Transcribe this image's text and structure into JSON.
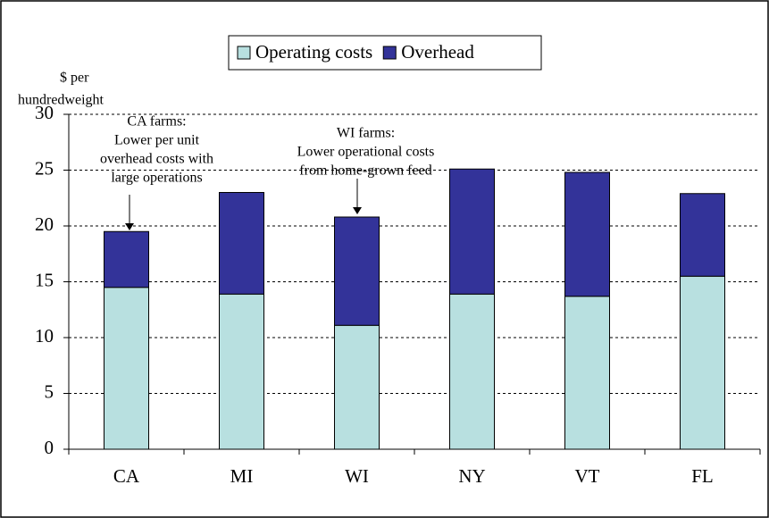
{
  "chart_data": {
    "type": "stacked_bar",
    "y_label": [
      "$ per",
      "hundredweight"
    ],
    "categories": [
      "CA",
      "MI",
      "WI",
      "NY",
      "VT",
      "FL"
    ],
    "series": [
      {
        "name": "Operating costs",
        "color": "#b8e0e0",
        "values": [
          14.5,
          13.9,
          11.1,
          13.9,
          13.7,
          15.5
        ]
      },
      {
        "name": "Overhead",
        "color": "#333399",
        "values": [
          5.0,
          9.1,
          9.7,
          11.2,
          11.1,
          7.4
        ]
      }
    ],
    "ylim": [
      0,
      30
    ],
    "yticks": [
      0,
      5,
      10,
      15,
      20,
      25,
      30
    ],
    "grid": true,
    "legend": "top",
    "annotations": [
      {
        "category": "CA",
        "lines": [
          "CA farms:",
          "Lower per unit",
          "overhead costs with",
          "large operations"
        ]
      },
      {
        "category": "WI",
        "lines": [
          "WI farms:",
          "Lower operational costs",
          "from home-grown feed"
        ]
      }
    ]
  }
}
